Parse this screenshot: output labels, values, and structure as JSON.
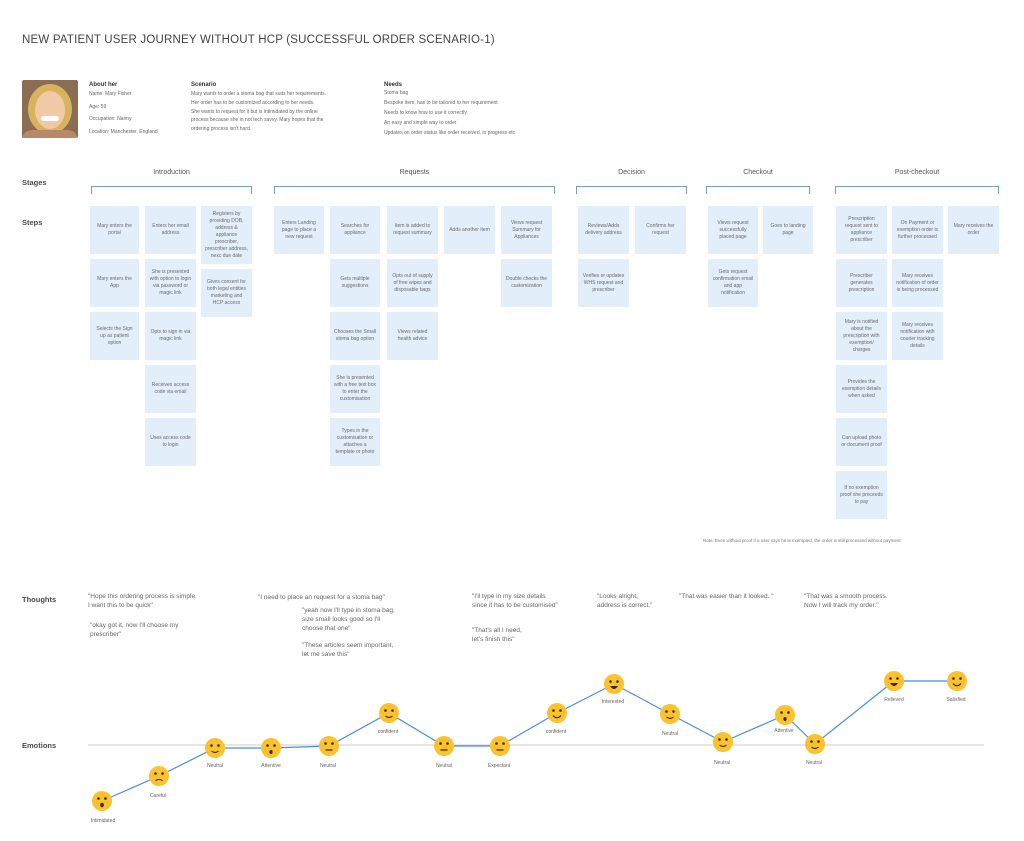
{
  "title": "NEW PATIENT USER JOURNEY WITHOUT HCP (SUCCESSFUL ORDER SCENARIO-1)",
  "profile": {
    "about_heading": "About her",
    "about": [
      "Name: Mary Fisher",
      "Age: 59",
      "Occupation: Nanny",
      "Location: Manchester, England"
    ],
    "scenario_heading": "Scenario",
    "scenario": [
      "Mary wants to order a stoma bag that suits her requirements.",
      "Her order has to be customized according to her needs.",
      "She wants to request for it but is intimidated by the online",
      "process because she in not tech savvy. Mary hopes that the",
      "ordering process isn't hard."
    ],
    "needs_heading": "Needs",
    "needs": [
      "Stoma bag",
      "Bespoke item, has to be tailored to her requirement",
      "Needs to know how to use it correctly",
      "An easy and simple way to order",
      "Updates on order status like order received, in progress etc"
    ]
  },
  "row_labels": {
    "stages": "Stages",
    "steps": "Steps",
    "thoughts": "Thoughts",
    "emotions": "Emotions"
  },
  "stages": [
    "Introduction",
    "Requests",
    "Decision",
    "Checkout",
    "Post-checkout"
  ],
  "steps": [
    {
      "text": "Mary enters the portal"
    },
    {
      "text": "Mary enters the App"
    },
    {
      "text": "Selects the Sign up as patient option"
    },
    {
      "text": "Enters her email address"
    },
    {
      "text": "She is presented with option to login via password or magic link"
    },
    {
      "text": "Opts to sign in via magic link"
    },
    {
      "text": "Receives access code via email"
    },
    {
      "text": "Uses access code to login"
    },
    {
      "text": "Registers by providing DOB, address & appliance prescriber, prescriber address, nexc due date"
    },
    {
      "text": "Gives consent for both legal entities marketing and HCP access"
    },
    {
      "text": "Enters Landing page to place a new request"
    },
    {
      "text": "Searches for appliance"
    },
    {
      "text": "Gets multiple suggestions"
    },
    {
      "text": "Chooses the Small stoma bag option"
    },
    {
      "text": "She is presented with a free text box to enter the customisation"
    },
    {
      "text": "Types in the customisation or attaches a template or photo"
    },
    {
      "text": "Item is added to request summary"
    },
    {
      "text": "Opts out of supply of free wipes and disposable bags"
    },
    {
      "text": "Views related health advice"
    },
    {
      "text": "Adds another item"
    },
    {
      "text": "Views request Summary for Appliances"
    },
    {
      "text": "Double checks the customization"
    },
    {
      "text": "Reviews/Adds delivery address"
    },
    {
      "text": "Verifies or updates WHS request and prescriber"
    },
    {
      "text": "Confirms her request"
    },
    {
      "text": "Views request successfully placed page"
    },
    {
      "text": "Gets request confirmation email and app notification"
    },
    {
      "text": "Goes to landing page"
    },
    {
      "text": "Prescription request sent to appliance prescriber"
    },
    {
      "text": "Prescriber generates prescription"
    },
    {
      "text": "Mary is notified about the prescription with exemption/ charges"
    },
    {
      "text": "Provides the exemption details when asked"
    },
    {
      "text": "Can upload photo or document proof"
    },
    {
      "text": "If no exemption proof she proceeds to pay"
    },
    {
      "text": "On Payment or exemption order is further processed"
    },
    {
      "text": "Mary receives notification of order is being processed"
    },
    {
      "text": "Mary receives notification with courier tracking details"
    },
    {
      "text": "Mary receives the order"
    }
  ],
  "note": "Note: Even without proof if a user says he is exempted, the order is still processed without payment",
  "thoughts": [
    {
      "lines": [
        "\"Hope this ordering process is simple.",
        "I want this to be quick\""
      ]
    },
    {
      "lines": [
        "\"okay got it, now I'll choose my",
        "prescriber\""
      ]
    },
    {
      "lines": [
        "\"I need to place an request for a stoma bag\""
      ]
    },
    {
      "lines": [
        "\"yeah now I'll type in stoma bag,",
        "size small looks good so I'll",
        "choose that one\""
      ]
    },
    {
      "lines": [
        "\"These articles seem important,",
        "let me save this\""
      ]
    },
    {
      "lines": [
        "\"I'll type in my size details",
        "since it has to be customised\""
      ]
    },
    {
      "lines": [
        "\"That's all I need,",
        "let's finish this\""
      ]
    },
    {
      "lines": [
        "\"Looks alright,",
        "address is correct.\""
      ]
    },
    {
      "lines": [
        "\"That was easier than it looked. \""
      ]
    },
    {
      "lines": [
        "\"That was a smooth process.",
        "Now I will track my order.\""
      ]
    }
  ],
  "emotions": [
    {
      "label": "Intimidated",
      "face": "worried"
    },
    {
      "label": "Careful",
      "face": "careful"
    },
    {
      "label": "Neutral",
      "face": "smile"
    },
    {
      "label": "Attentive",
      "face": "surprised"
    },
    {
      "label": "Neutral",
      "face": "neutral"
    },
    {
      "label": "confident",
      "face": "smile"
    },
    {
      "label": "Neutral",
      "face": "neutral"
    },
    {
      "label": "Expectant",
      "face": "neutral"
    },
    {
      "label": "confident",
      "face": "happy"
    },
    {
      "label": "Interested",
      "face": "grin"
    },
    {
      "label": "Neutral",
      "face": "smile"
    },
    {
      "label": "Neutral",
      "face": "smile"
    },
    {
      "label": "Attentive",
      "face": "surprised"
    },
    {
      "label": "Neutral",
      "face": "smile"
    },
    {
      "label": "Relieved",
      "face": "grin"
    },
    {
      "label": "Satisfied",
      "face": "happy"
    }
  ],
  "colors": {
    "card": "#e3eefb",
    "bracket": "#7a9cc9",
    "curve": "#4a8de0",
    "face": "#f9c22e",
    "baseline": "#bdbdbd"
  }
}
